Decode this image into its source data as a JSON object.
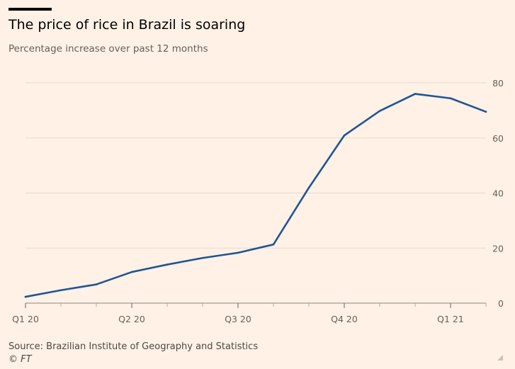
{
  "chart_data": {
    "type": "line",
    "title": "The price of rice in Brazil is soaring",
    "subtitle": "Percentage increase over past 12 months",
    "xlabel": "",
    "ylabel": "",
    "x": [
      0,
      1,
      2,
      3,
      4,
      5,
      6,
      7,
      8,
      9,
      10,
      11,
      12,
      13
    ],
    "categories": [
      "Q1 20",
      "Q2 20",
      "Q3 20",
      "Q4 20",
      "Q1 21"
    ],
    "category_positions": [
      0,
      3,
      6,
      9,
      12
    ],
    "series": [
      {
        "name": "Rice price increase",
        "values": [
          2.3,
          4.7,
          6.8,
          11.3,
          14.0,
          16.4,
          18.3,
          21.3,
          41.9,
          60.9,
          69.8,
          76.0,
          74.4,
          69.5
        ],
        "color": "#1f5594"
      }
    ],
    "yticks": [
      0,
      20,
      40,
      60,
      80
    ],
    "ylim": [
      0,
      80
    ],
    "xlim": [
      0,
      13
    ],
    "grid": true,
    "y_axis_side": "right"
  },
  "source": "Source: Brazilian Institute of Geography and Statistics",
  "copyright": "© FT",
  "colors": {
    "background": "#fff1e5",
    "line": "#1f5594",
    "grid": "#e6d9ce",
    "axis": "#66605c"
  }
}
